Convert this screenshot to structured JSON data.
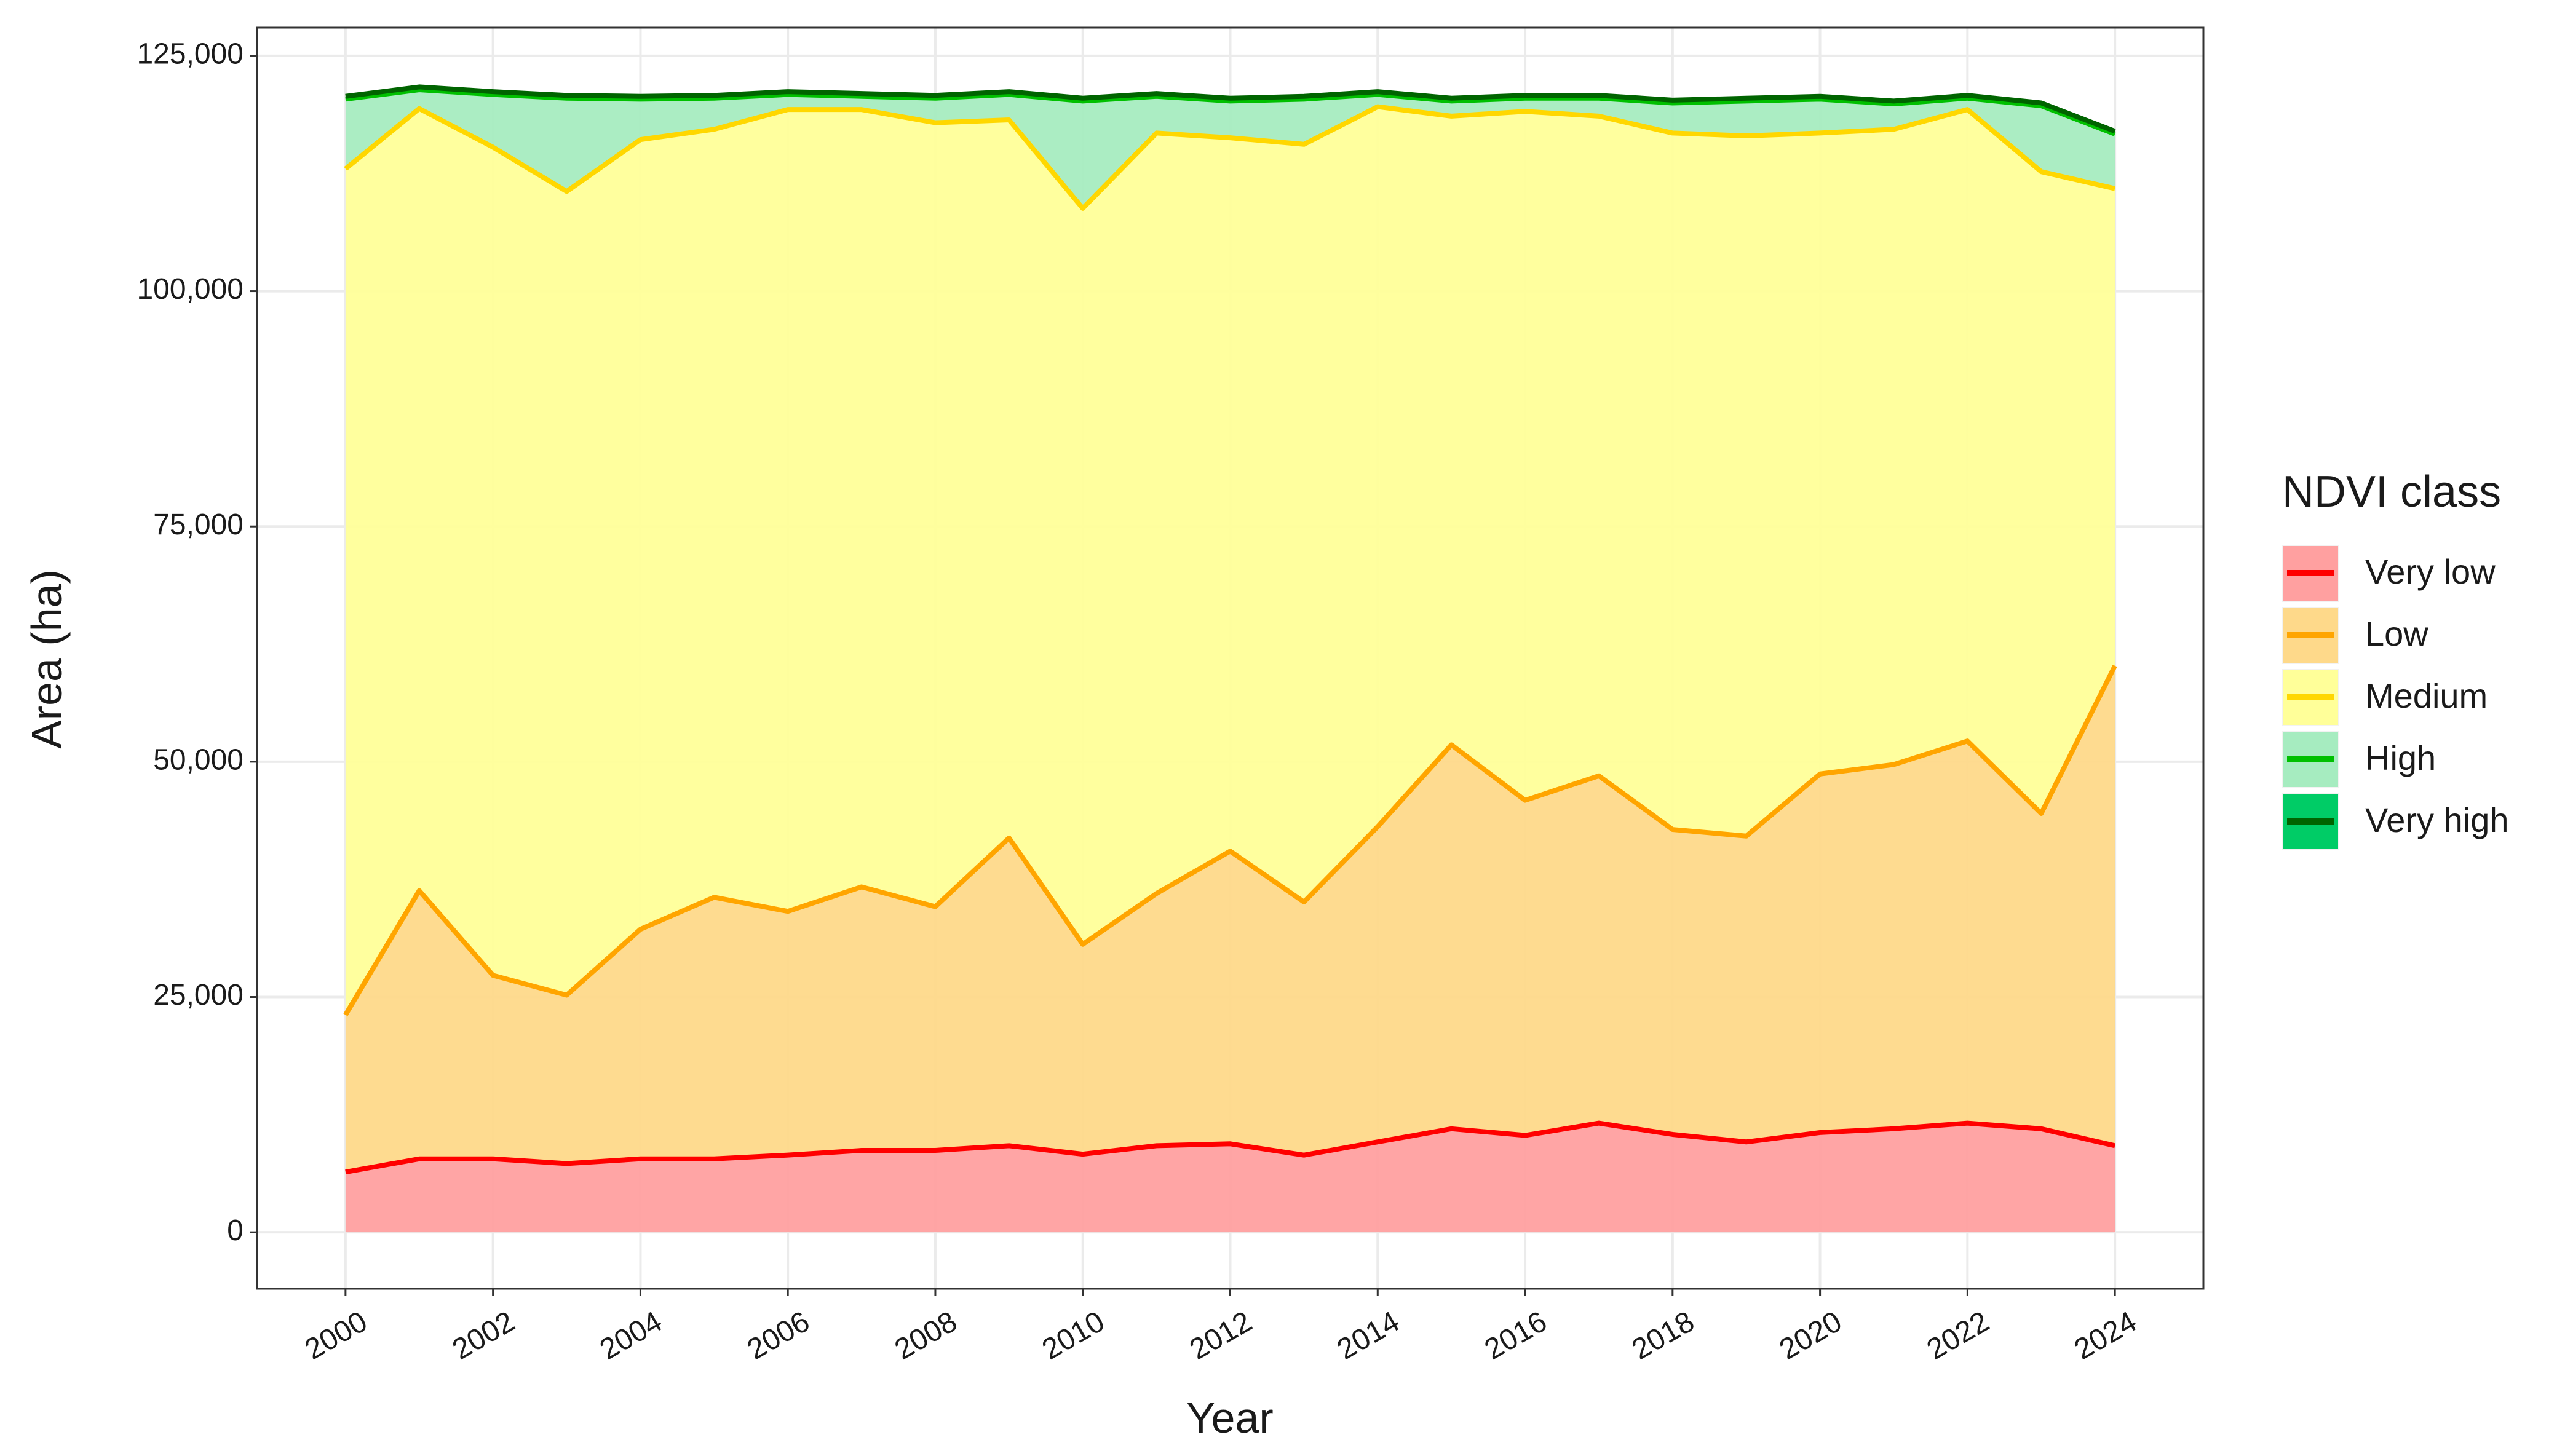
{
  "chart_data": {
    "type": "area",
    "stacked": true,
    "x_label": "Year",
    "y_label": "Area (ha)",
    "legend_title": "NDVI class",
    "legend_position": "right",
    "grid": true,
    "x": [
      2000,
      2001,
      2002,
      2003,
      2004,
      2005,
      2006,
      2007,
      2008,
      2009,
      2010,
      2011,
      2012,
      2013,
      2014,
      2015,
      2016,
      2017,
      2018,
      2019,
      2020,
      2021,
      2022,
      2023,
      2024
    ],
    "xlim": [
      1998.8,
      2025.2
    ],
    "xticks": [
      2000,
      2002,
      2004,
      2006,
      2008,
      2010,
      2012,
      2014,
      2016,
      2018,
      2020,
      2022,
      2024
    ],
    "ylim": [
      -6000,
      128000
    ],
    "yticks": [
      0,
      {
        "value": 25000,
        "label": "25,000"
      },
      {
        "value": 50000,
        "label": "50,000"
      },
      {
        "value": 75000,
        "label": "75,000"
      },
      {
        "value": 100000,
        "label": "100,000"
      },
      {
        "value": 125000,
        "label": "125,000"
      }
    ],
    "series": [
      {
        "name": "Very low",
        "color": "#ff0000",
        "fill": "#ffa0a0",
        "values": [
          6400,
          7800,
          7800,
          7300,
          7800,
          7800,
          8200,
          8700,
          8700,
          9200,
          8300,
          9200,
          9400,
          8200,
          9600,
          11000,
          10300,
          11600,
          10400,
          9600,
          10600,
          11000,
          11600,
          11000,
          9200
        ]
      },
      {
        "name": "Low",
        "color": "#ffa500",
        "fill": "#fed98a",
        "values": [
          16700,
          28500,
          19500,
          17900,
          24400,
          27800,
          25900,
          28000,
          25900,
          32700,
          22300,
          26800,
          31100,
          26900,
          33500,
          40800,
          35600,
          36900,
          32400,
          32500,
          38100,
          38700,
          40600,
          33500,
          51000
        ]
      },
      {
        "name": "Medium",
        "color": "#ffd700",
        "fill": "#ffff99",
        "values": [
          89900,
          83100,
          88000,
          85400,
          83900,
          81600,
          85200,
          82600,
          83300,
          76300,
          78200,
          80800,
          75800,
          80500,
          76500,
          66800,
          73200,
          70100,
          74000,
          74400,
          68100,
          67500,
          67100,
          68200,
          50700
        ]
      },
      {
        "name": "High",
        "color": "#00c000",
        "fill": "#a6ecc0",
        "values": [
          7400,
          2000,
          5600,
          9900,
          4300,
          3300,
          1600,
          1400,
          2600,
          2700,
          11400,
          3900,
          3900,
          4800,
          1300,
          1600,
          1400,
          1900,
          3200,
          3700,
          3600,
          2700,
          1200,
          7000,
          5800
        ]
      },
      {
        "name": "Very high",
        "color": "#006400",
        "fill": "#00cc66",
        "values": [
          300,
          300,
          300,
          300,
          300,
          300,
          300,
          300,
          300,
          300,
          300,
          300,
          300,
          300,
          300,
          300,
          300,
          300,
          300,
          300,
          300,
          300,
          300,
          300,
          300
        ]
      }
    ]
  }
}
